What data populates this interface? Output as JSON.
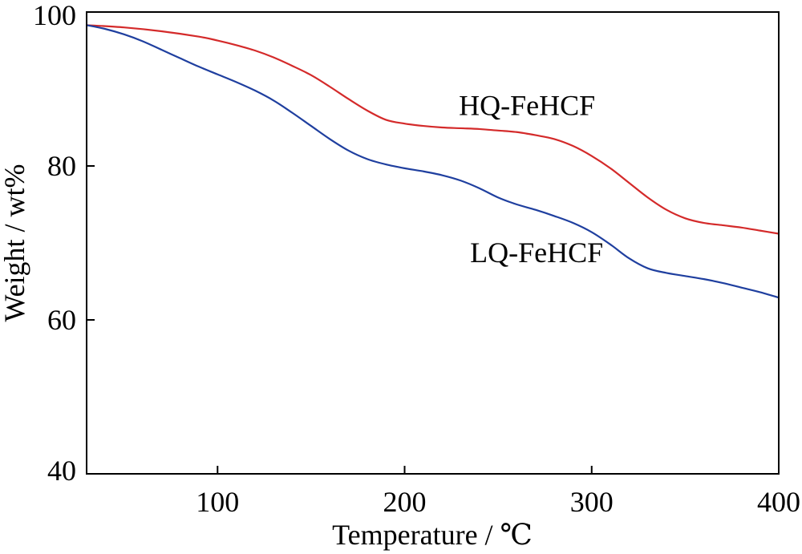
{
  "chart_data": {
    "type": "line",
    "title": "",
    "xlabel": "Temperature / ℃",
    "ylabel": "Weight / wt%",
    "xlim": [
      30,
      400
    ],
    "ylim": [
      40,
      100
    ],
    "xticks": [
      100,
      200,
      300,
      400
    ],
    "xtick_labels": [
      "100",
      "200",
      "300",
      "400"
    ],
    "yticks": [
      40,
      60,
      80,
      100
    ],
    "ytick_labels": [
      "40",
      "60",
      "80",
      "100"
    ],
    "grid": false,
    "legend": "none",
    "series": [
      {
        "name": "HQ-FeHCF",
        "color": "#d42a2a",
        "label_at": [
          229,
          86.6
        ],
        "points": [
          [
            30,
            98.3
          ],
          [
            50,
            98.0
          ],
          [
            70,
            97.5
          ],
          [
            90,
            96.8
          ],
          [
            100,
            96.3
          ],
          [
            110,
            95.7
          ],
          [
            120,
            95.0
          ],
          [
            130,
            94.1
          ],
          [
            140,
            93.0
          ],
          [
            150,
            91.8
          ],
          [
            160,
            90.3
          ],
          [
            170,
            88.7
          ],
          [
            180,
            87.2
          ],
          [
            190,
            86.0
          ],
          [
            200,
            85.5
          ],
          [
            210,
            85.2
          ],
          [
            220,
            85.0
          ],
          [
            230,
            84.9
          ],
          [
            240,
            84.8
          ],
          [
            250,
            84.6
          ],
          [
            260,
            84.4
          ],
          [
            270,
            84.0
          ],
          [
            280,
            83.5
          ],
          [
            290,
            82.6
          ],
          [
            300,
            81.3
          ],
          [
            310,
            79.7
          ],
          [
            320,
            77.8
          ],
          [
            330,
            75.9
          ],
          [
            340,
            74.3
          ],
          [
            350,
            73.2
          ],
          [
            360,
            72.6
          ],
          [
            370,
            72.3
          ],
          [
            380,
            72.0
          ],
          [
            390,
            71.6
          ],
          [
            400,
            71.2
          ]
        ]
      },
      {
        "name": "LQ-FeHCF",
        "color": "#1f3f9f",
        "label_at": [
          235,
          67.5
        ],
        "points": [
          [
            30,
            98.3
          ],
          [
            40,
            97.8
          ],
          [
            50,
            97.1
          ],
          [
            60,
            96.2
          ],
          [
            70,
            95.1
          ],
          [
            80,
            94.0
          ],
          [
            90,
            92.9
          ],
          [
            100,
            91.9
          ],
          [
            110,
            90.9
          ],
          [
            120,
            89.8
          ],
          [
            130,
            88.5
          ],
          [
            140,
            86.9
          ],
          [
            150,
            85.2
          ],
          [
            160,
            83.5
          ],
          [
            170,
            82.0
          ],
          [
            180,
            80.9
          ],
          [
            190,
            80.2
          ],
          [
            200,
            79.7
          ],
          [
            210,
            79.3
          ],
          [
            220,
            78.8
          ],
          [
            230,
            78.1
          ],
          [
            240,
            77.1
          ],
          [
            250,
            75.9
          ],
          [
            260,
            75.0
          ],
          [
            270,
            74.3
          ],
          [
            280,
            73.5
          ],
          [
            290,
            72.6
          ],
          [
            300,
            71.4
          ],
          [
            310,
            69.8
          ],
          [
            320,
            68.0
          ],
          [
            330,
            66.7
          ],
          [
            340,
            66.1
          ],
          [
            350,
            65.7
          ],
          [
            360,
            65.3
          ],
          [
            370,
            64.8
          ],
          [
            380,
            64.2
          ],
          [
            390,
            63.6
          ],
          [
            400,
            62.9
          ]
        ]
      }
    ]
  }
}
